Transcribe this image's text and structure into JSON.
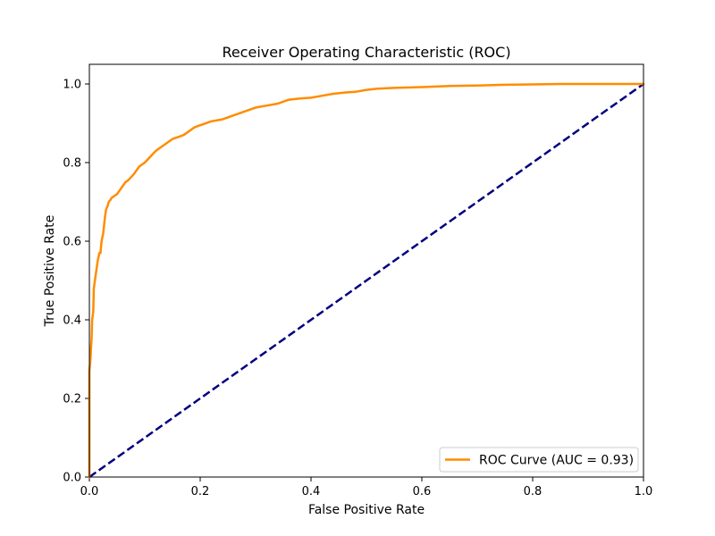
{
  "chart_data": {
    "type": "line",
    "title": "Receiver Operating Characteristic (ROC)",
    "xlabel": "False Positive Rate",
    "ylabel": "True Positive Rate",
    "xlim": [
      0.0,
      1.0
    ],
    "ylim": [
      0.0,
      1.05
    ],
    "x_ticks": [
      0.0,
      0.2,
      0.4,
      0.6,
      0.8,
      1.0
    ],
    "y_ticks": [
      0.0,
      0.2,
      0.4,
      0.6,
      0.8,
      1.0
    ],
    "x_tick_labels": [
      "0.0",
      "0.2",
      "0.4",
      "0.6",
      "0.8",
      "1.0"
    ],
    "y_tick_labels": [
      "0.0",
      "0.2",
      "0.4",
      "0.6",
      "0.8",
      "1.0"
    ],
    "grid": false,
    "legend_position": "bottom-right",
    "series": [
      {
        "name": "ROC Curve (AUC = 0.93)",
        "color": "#ff8c00",
        "style": "solid",
        "x": [
          0.0,
          0.0,
          0.002,
          0.003,
          0.004,
          0.005,
          0.007,
          0.008,
          0.01,
          0.012,
          0.015,
          0.018,
          0.02,
          0.022,
          0.025,
          0.028,
          0.03,
          0.033,
          0.035,
          0.038,
          0.04,
          0.045,
          0.05,
          0.055,
          0.06,
          0.065,
          0.07,
          0.08,
          0.09,
          0.1,
          0.11,
          0.12,
          0.13,
          0.14,
          0.15,
          0.16,
          0.17,
          0.18,
          0.19,
          0.2,
          0.22,
          0.24,
          0.26,
          0.28,
          0.3,
          0.32,
          0.34,
          0.36,
          0.38,
          0.4,
          0.42,
          0.44,
          0.46,
          0.48,
          0.5,
          0.52,
          0.55,
          0.6,
          0.65,
          0.7,
          0.75,
          0.8,
          0.85,
          0.9,
          0.95,
          1.0
        ],
        "y": [
          0.0,
          0.27,
          0.3,
          0.33,
          0.35,
          0.4,
          0.42,
          0.48,
          0.5,
          0.52,
          0.55,
          0.57,
          0.57,
          0.6,
          0.62,
          0.66,
          0.68,
          0.69,
          0.7,
          0.705,
          0.71,
          0.715,
          0.72,
          0.73,
          0.74,
          0.75,
          0.755,
          0.77,
          0.79,
          0.8,
          0.815,
          0.83,
          0.84,
          0.85,
          0.86,
          0.865,
          0.87,
          0.88,
          0.89,
          0.895,
          0.905,
          0.91,
          0.92,
          0.93,
          0.94,
          0.945,
          0.95,
          0.96,
          0.963,
          0.965,
          0.97,
          0.975,
          0.978,
          0.98,
          0.985,
          0.988,
          0.99,
          0.992,
          0.995,
          0.996,
          0.998,
          0.999,
          1.0,
          1.0,
          1.0,
          1.0
        ]
      },
      {
        "name": "",
        "color": "#000080",
        "style": "dashed",
        "x": [
          0.0,
          1.0
        ],
        "y": [
          0.0,
          1.0
        ]
      }
    ]
  }
}
